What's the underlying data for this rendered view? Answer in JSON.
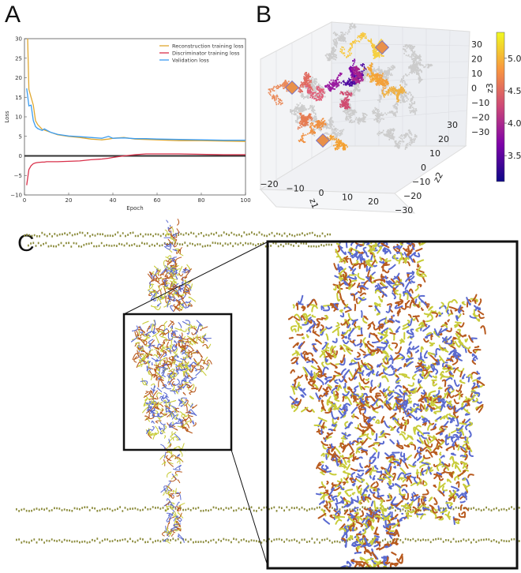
{
  "panels": {
    "a": "A",
    "b": "B",
    "c": "C"
  },
  "chart_data": [
    {
      "type": "line",
      "panel": "A",
      "xlabel": "Epoch",
      "ylabel": "Loss",
      "xlim": [
        0,
        100
      ],
      "ylim": [
        -10,
        30
      ],
      "xticks": [
        "0",
        "20",
        "40",
        "60",
        "80",
        "100"
      ],
      "yticks": [
        "−10",
        "−5",
        "0",
        "5",
        "10",
        "15",
        "20",
        "25",
        "30"
      ],
      "xtick_values": [
        0,
        20,
        40,
        60,
        80,
        100
      ],
      "ytick_values": [
        -10,
        -5,
        0,
        5,
        10,
        15,
        20,
        25,
        30
      ],
      "legend_position": "top-right",
      "x": [
        1,
        2,
        3,
        4,
        5,
        6,
        8,
        9,
        10,
        12,
        15,
        20,
        25,
        30,
        35,
        38,
        40,
        45,
        50,
        55,
        60,
        70,
        80,
        90,
        100
      ],
      "series": [
        {
          "name": "Reconstruction training loss",
          "color": "#e0a830",
          "values": [
            40,
            17,
            15,
            13,
            9,
            8,
            6.8,
            6.6,
            6.4,
            6,
            5.4,
            5,
            4.7,
            4.3,
            4.1,
            4.3,
            4.5,
            4.7,
            4.3,
            4.2,
            4.1,
            3.9,
            3.9,
            3.8,
            3.7
          ]
        },
        {
          "name": "Discriminator training loss",
          "color": "#d9304a",
          "values": [
            -7.5,
            -3.5,
            -2.5,
            -2,
            -1.8,
            -1.7,
            -1.6,
            -1.6,
            -1.5,
            -1.5,
            -1.5,
            -1.4,
            -1.3,
            -1,
            -0.8,
            -0.6,
            -0.4,
            0,
            0.3,
            0.5,
            0.5,
            0.5,
            0.4,
            0.3,
            0.3
          ]
        },
        {
          "name": "Validation loss",
          "color": "#3b9cf0",
          "values": [
            17.3,
            12.8,
            13,
            9,
            7.5,
            7,
            6.5,
            6.9,
            6.6,
            6,
            5.5,
            5.1,
            4.9,
            4.7,
            4.5,
            5,
            4.5,
            4.6,
            4.4,
            4.4,
            4.3,
            4.2,
            4.1,
            4.0,
            4.0
          ]
        }
      ],
      "zero_line": true
    },
    {
      "type": "scatter",
      "panel": "B",
      "projection": "3d",
      "xlabel": "z1",
      "ylabel": "z2",
      "zlabel": "z3",
      "xticks": [
        "−20",
        "−10",
        "0",
        "10",
        "20"
      ],
      "yticks": [
        "−30",
        "−20",
        "−10",
        "0",
        "10",
        "20",
        "30"
      ],
      "zticks": [
        "30",
        "20",
        "10",
        "0",
        "−10",
        "−20",
        "−30"
      ],
      "colorbar": {
        "colormap": "plasma",
        "range": [
          3.1,
          5.4
        ],
        "ticks": [
          "5.0",
          "4.5",
          "4.0",
          "3.5"
        ],
        "tick_values": [
          5.0,
          4.5,
          4.0,
          3.5
        ]
      },
      "background_color": "#cccccc",
      "marker_color": "#e8904a"
    }
  ],
  "panel_c": {
    "membrane_color": "#8a8a3a",
    "protein_colors": [
      "#b85a1e",
      "#c8cc3a",
      "#5a6ad0"
    ]
  }
}
